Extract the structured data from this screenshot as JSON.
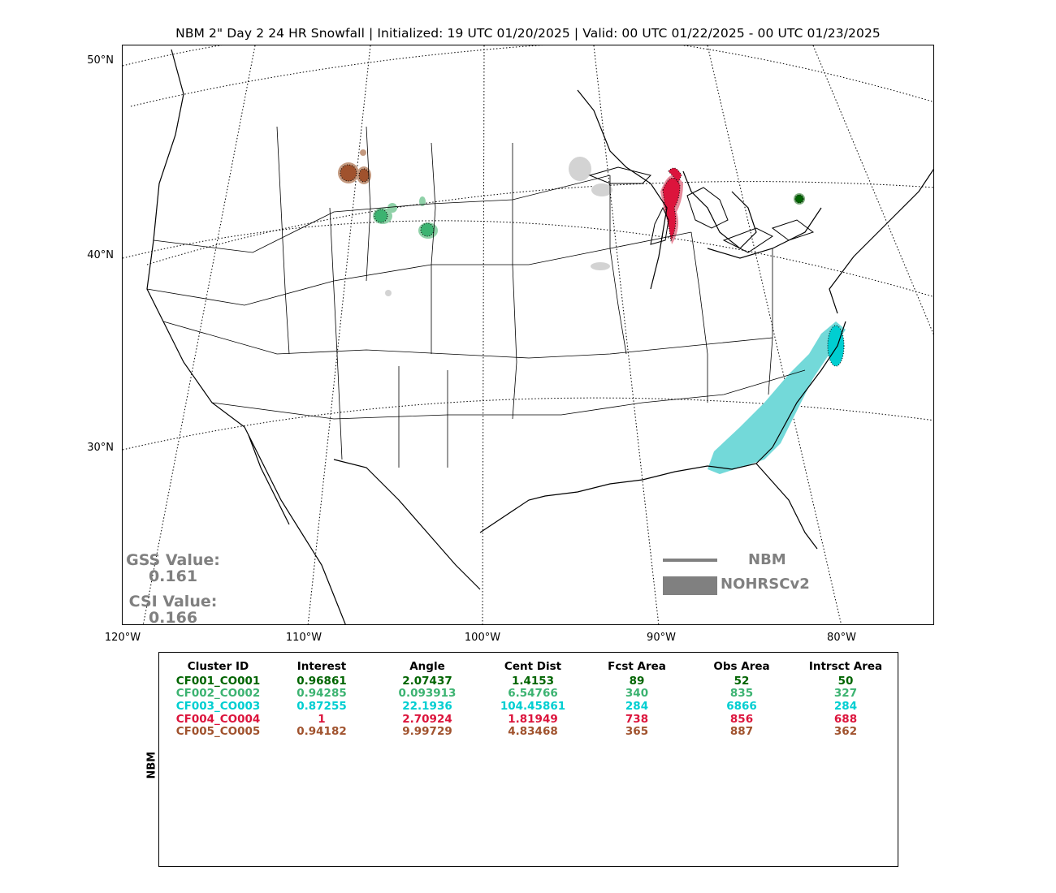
{
  "title": "NBM 2\" Day 2 24 HR Snowfall | Initialized: 19 UTC 01/20/2025 | Valid: 00 UTC 01/22/2025 - 00 UTC 01/23/2025",
  "lat_labels": [
    "50°N",
    "40°N",
    "30°N"
  ],
  "lon_labels": [
    "120°W",
    "110°W",
    "100°W",
    "90°W",
    "80°W"
  ],
  "scores": {
    "gss_label": "GSS Value:",
    "gss_value": "0.161",
    "csi_label": "CSI Value:",
    "csi_value": "0.166"
  },
  "legend": {
    "line_label": "NBM",
    "fill_label": "NOHRSCv2",
    "color": "#808080"
  },
  "table": {
    "side_label": "NBM",
    "headers": [
      "Cluster ID",
      "Interest",
      "Angle",
      "Cent Dist",
      "Fcst Area",
      "Obs Area",
      "Intrsct Area"
    ],
    "rows": [
      {
        "color": "#006400",
        "cells": [
          "CF001_CO001",
          "0.96861",
          "2.07437",
          "1.4153",
          "89",
          "52",
          "50"
        ]
      },
      {
        "color": "#3cb371",
        "cells": [
          "CF002_CO002",
          "0.94285",
          "0.093913",
          "6.54766",
          "340",
          "835",
          "327"
        ]
      },
      {
        "color": "#00ced1",
        "cells": [
          "CF003_CO003",
          "0.87255",
          "22.1936",
          "104.45861",
          "284",
          "6866",
          "284"
        ]
      },
      {
        "color": "#dc143c",
        "cells": [
          "CF004_CO004",
          "1",
          "2.70924",
          "1.81949",
          "738",
          "856",
          "688"
        ]
      },
      {
        "color": "#a0522d",
        "cells": [
          "CF005_CO005",
          "0.94182",
          "9.99729",
          "4.83468",
          "365",
          "887",
          "362"
        ]
      }
    ]
  },
  "colors": {
    "obs_fill": "#d3d3d3",
    "cluster1": "#006400",
    "cluster2": "#3cb371",
    "cluster3": "#00ced1",
    "cluster4": "#dc143c",
    "cluster5": "#a0522d"
  }
}
